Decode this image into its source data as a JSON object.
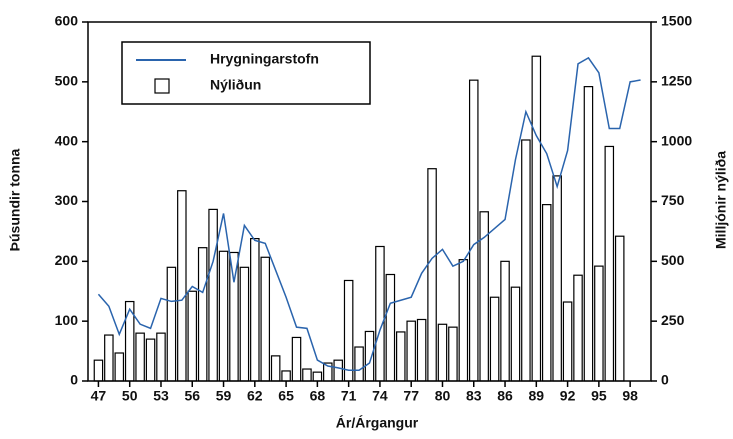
{
  "chart_data": {
    "type": "bar-line",
    "xlabel": "Ár/Árgangur",
    "ylabel": "Þúsundir tonna",
    "y2label": "Milljónir nýliða",
    "x": [
      47,
      48,
      49,
      50,
      51,
      52,
      53,
      54,
      55,
      56,
      57,
      58,
      59,
      60,
      61,
      62,
      63,
      64,
      65,
      66,
      67,
      68,
      69,
      70,
      71,
      72,
      73,
      74,
      75,
      76,
      77,
      78,
      79,
      80,
      81,
      82,
      83,
      84,
      85,
      86,
      87,
      88,
      89,
      90,
      91,
      92,
      93,
      94,
      95,
      96,
      97,
      98,
      99
    ],
    "xlim": [
      46,
      100
    ],
    "xticks": [
      47,
      50,
      53,
      56,
      59,
      62,
      65,
      68,
      71,
      74,
      77,
      80,
      83,
      86,
      89,
      92,
      95,
      98
    ],
    "ylim": [
      0,
      600
    ],
    "yticks": [
      0,
      100,
      200,
      300,
      400,
      500,
      600
    ],
    "y2lim": [
      0,
      1500
    ],
    "y2ticks": [
      0,
      250,
      500,
      750,
      1000,
      1250,
      1500
    ],
    "legend": "top-left",
    "series": [
      {
        "name": "Hrygningarstofn",
        "kind": "line",
        "color": "#2a64ad",
        "values": [
          145,
          125,
          78,
          120,
          95,
          88,
          138,
          133,
          135,
          158,
          148,
          200,
          280,
          165,
          260,
          235,
          230,
          185,
          140,
          90,
          88,
          35,
          25,
          22,
          18,
          18,
          30,
          85,
          130,
          135,
          140,
          180,
          205,
          220,
          192,
          200,
          228,
          240,
          255,
          270,
          370,
          450,
          410,
          380,
          325,
          385,
          530,
          540,
          515,
          422,
          422,
          500,
          503
        ]
      },
      {
        "name": "Nýliðun",
        "kind": "bar",
        "axis": "y2",
        "color": "#ffffff",
        "values": [
          87,
          192,
          117,
          332,
          200,
          175,
          200,
          475,
          795,
          375,
          557,
          717,
          542,
          537,
          475,
          595,
          517,
          105,
          42,
          182,
          50,
          37,
          75,
          87,
          420,
          142,
          207,
          562,
          445,
          205,
          250,
          257,
          887,
          237,
          225,
          507,
          1257,
          707,
          350,
          500,
          392,
          1007,
          1357,
          737,
          857,
          330,
          442,
          1230,
          480,
          980,
          605,
          null,
          null
        ]
      }
    ]
  }
}
